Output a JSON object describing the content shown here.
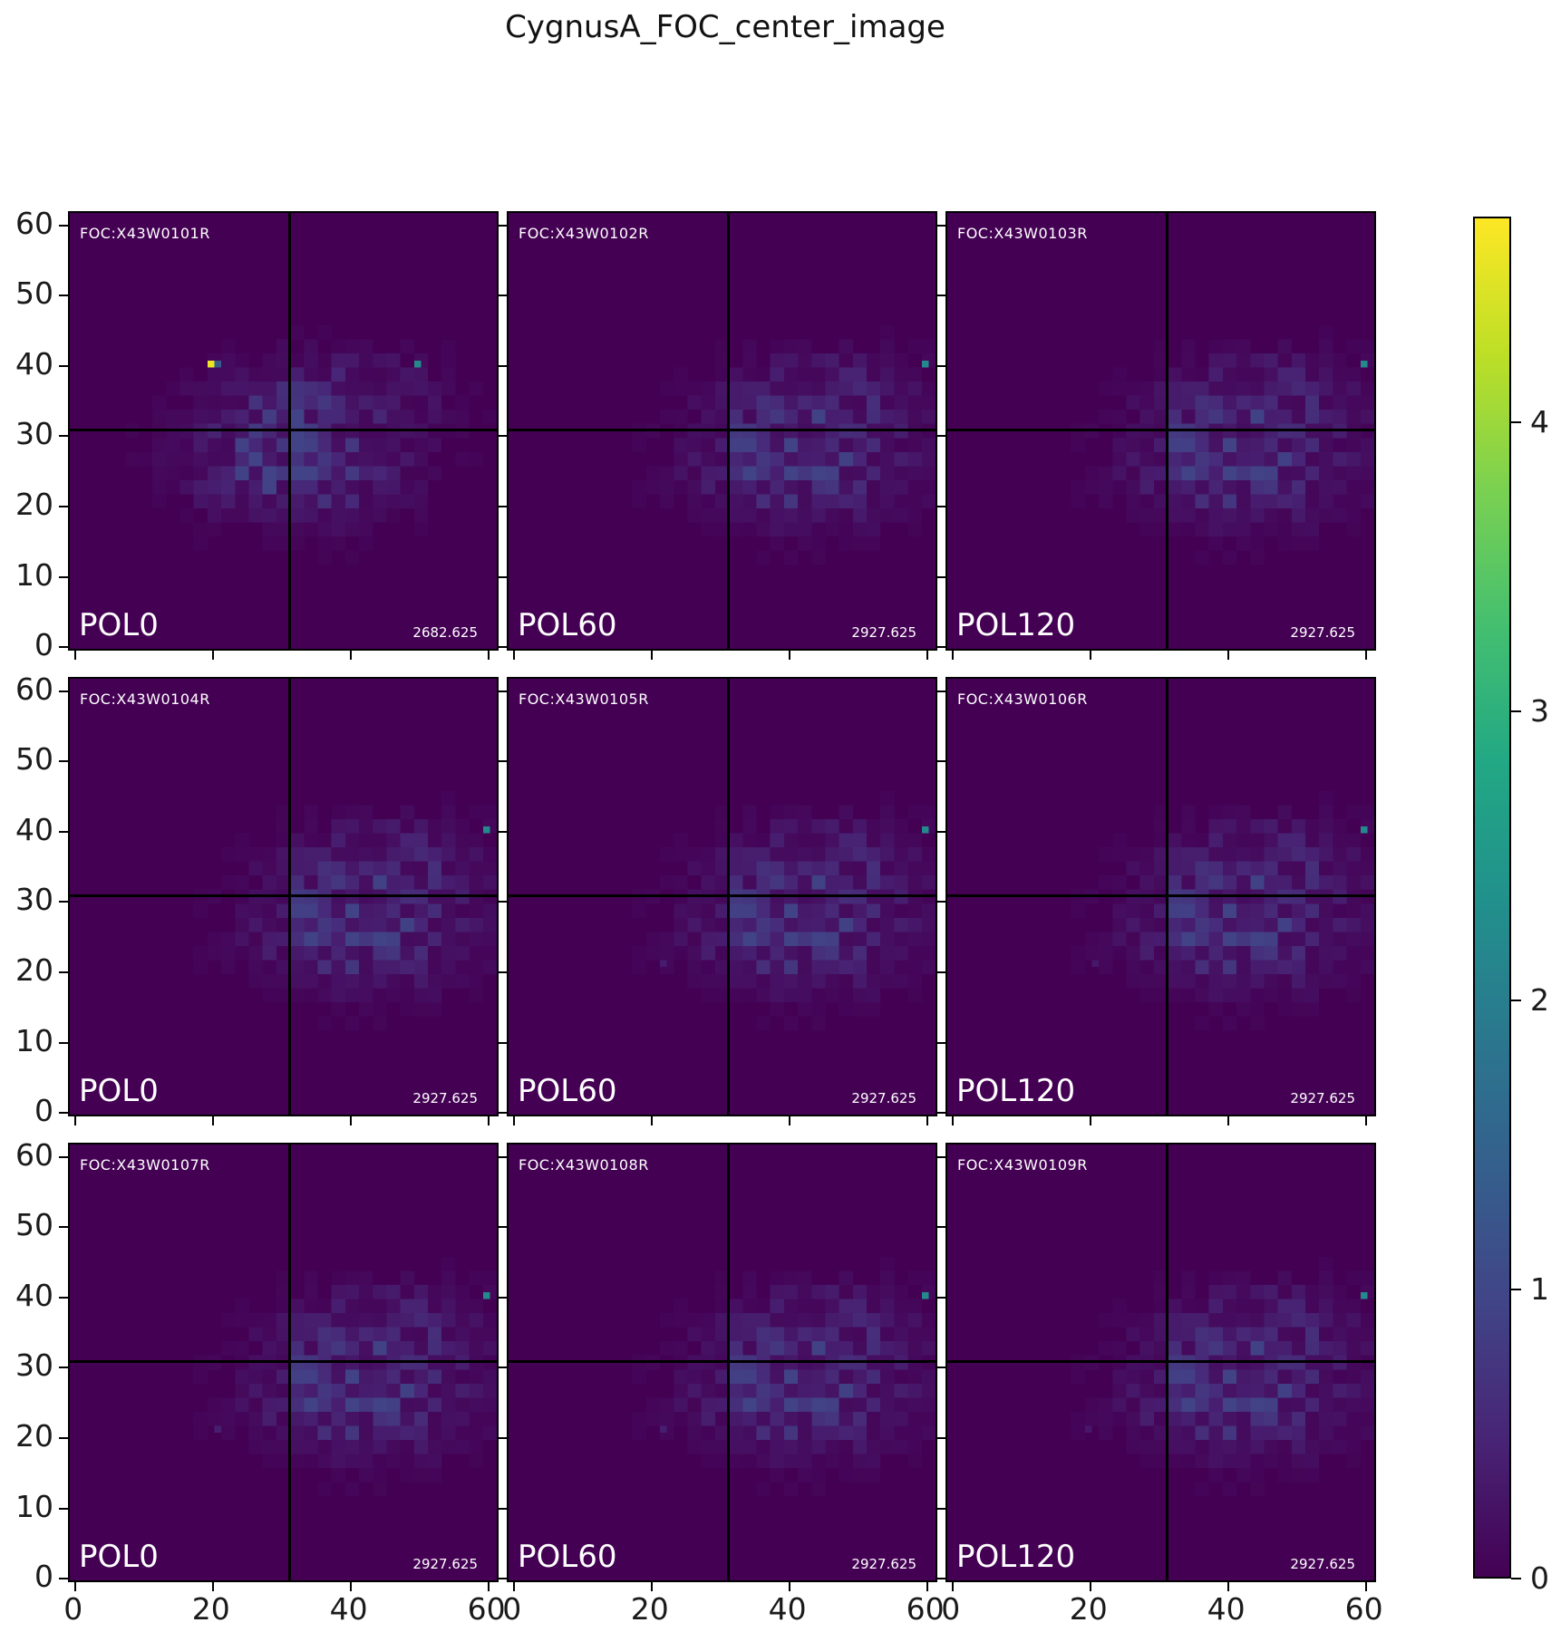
{
  "title": "CygnusA_FOC_center_image",
  "colors": {
    "figure_bg": "#ffffff",
    "panel_bg": "#440154",
    "crosshair": "#000000",
    "panel_text": "#ffffff",
    "axis_text": "#1a1a1a"
  },
  "chart_data": {
    "type": "heatmap",
    "title": "CygnusA_FOC_center_image",
    "colormap": "viridis",
    "vmin": 0,
    "vmax": 4.71,
    "grid": {
      "rows": 3,
      "cols": 3
    },
    "axes": {
      "x_ticks": [
        0,
        20,
        40,
        60
      ],
      "y_ticks": [
        0,
        10,
        20,
        30,
        40,
        50,
        60
      ],
      "x_range": [
        0,
        62
      ],
      "y_range": [
        0,
        62
      ],
      "x_labels_on": "bottom-row-only",
      "y_labels_on": "left-column-only"
    },
    "colorbar": {
      "ticks": [
        0,
        1,
        2,
        3,
        4
      ],
      "position": "right",
      "stops": [
        [
          0.0,
          "#440154"
        ],
        [
          0.1,
          "#482475"
        ],
        [
          0.2,
          "#414487"
        ],
        [
          0.3,
          "#355f8d"
        ],
        [
          0.4,
          "#2a788e"
        ],
        [
          0.5,
          "#21918c"
        ],
        [
          0.6,
          "#22a884"
        ],
        [
          0.7,
          "#44bf70"
        ],
        [
          0.8,
          "#7ad151"
        ],
        [
          0.9,
          "#bddf26"
        ],
        [
          1.0,
          "#fde725"
        ]
      ]
    },
    "crosshair": {
      "x": 31,
      "y": 31
    },
    "cloud": {
      "main": {
        "cx": 33,
        "cy": 26,
        "sx": 10,
        "sy": 5.5,
        "amp": 1.0
      },
      "band": {
        "cx": 38,
        "cy": 36.5,
        "sx": 11,
        "sy": 4.0,
        "amp": 0.55
      },
      "hotspot": {
        "cx": 30,
        "cy": 29.5,
        "sx": 4,
        "sy": 3.0,
        "amp": 0.85
      }
    },
    "panels": [
      {
        "row": 0,
        "col": 0,
        "foc_id": "FOC:X43W0101R",
        "pol": "POL0",
        "exposure": "2682.625",
        "cloud_dx": 0,
        "bright_pixels": [
          {
            "x": 20,
            "y": 40,
            "v": 4.6
          },
          {
            "x": 21,
            "y": 40,
            "v": 1.35
          },
          {
            "x": 50,
            "y": 40,
            "v": 2.2
          }
        ],
        "specks": []
      },
      {
        "row": 0,
        "col": 1,
        "foc_id": "FOC:X43W0102R",
        "pol": "POL60",
        "exposure": "2927.625",
        "cloud_dx": 9.5,
        "bright_pixels": [
          {
            "x": 60,
            "y": 40,
            "v": 2.2
          }
        ],
        "specks": []
      },
      {
        "row": 0,
        "col": 2,
        "foc_id": "FOC:X43W0103R",
        "pol": "POL120",
        "exposure": "2927.625",
        "cloud_dx": 9.5,
        "bright_pixels": [
          {
            "x": 60,
            "y": 40,
            "v": 2.2
          }
        ],
        "specks": []
      },
      {
        "row": 1,
        "col": 0,
        "foc_id": "FOC:X43W0104R",
        "pol": "POL0",
        "exposure": "2927.625",
        "cloud_dx": 9.5,
        "bright_pixels": [
          {
            "x": 60,
            "y": 40,
            "v": 2.2
          }
        ],
        "specks": []
      },
      {
        "row": 1,
        "col": 1,
        "foc_id": "FOC:X43W0105R",
        "pol": "POL60",
        "exposure": "2927.625",
        "cloud_dx": 9.5,
        "bright_pixels": [
          {
            "x": 60,
            "y": 40,
            "v": 2.2
          }
        ],
        "specks": [
          {
            "x": 22,
            "y": 21,
            "v": 0.35
          }
        ]
      },
      {
        "row": 1,
        "col": 2,
        "foc_id": "FOC:X43W0106R",
        "pol": "POL120",
        "exposure": "2927.625",
        "cloud_dx": 9.5,
        "bright_pixels": [
          {
            "x": 60,
            "y": 40,
            "v": 2.2
          }
        ],
        "specks": [
          {
            "x": 21,
            "y": 21,
            "v": 0.3
          }
        ]
      },
      {
        "row": 2,
        "col": 0,
        "foc_id": "FOC:X43W0107R",
        "pol": "POL0",
        "exposure": "2927.625",
        "cloud_dx": 9.5,
        "bright_pixels": [
          {
            "x": 60,
            "y": 40,
            "v": 2.2
          }
        ],
        "specks": [
          {
            "x": 21,
            "y": 21,
            "v": 0.4
          }
        ]
      },
      {
        "row": 2,
        "col": 1,
        "foc_id": "FOC:X43W0108R",
        "pol": "POL60",
        "exposure": "2927.625",
        "cloud_dx": 9.5,
        "bright_pixels": [
          {
            "x": 60,
            "y": 40,
            "v": 2.2
          }
        ],
        "specks": [
          {
            "x": 22,
            "y": 21,
            "v": 0.4
          }
        ]
      },
      {
        "row": 2,
        "col": 2,
        "foc_id": "FOC:X43W0109R",
        "pol": "POL120",
        "exposure": "2927.625",
        "cloud_dx": 9.5,
        "bright_pixels": [
          {
            "x": 60,
            "y": 40,
            "v": 2.2
          }
        ],
        "specks": [
          {
            "x": 20,
            "y": 21,
            "v": 0.3
          }
        ]
      }
    ]
  }
}
